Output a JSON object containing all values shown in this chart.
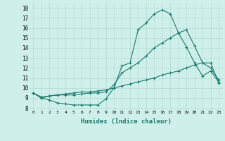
{
  "xlabel": "Humidex (Indice chaleur)",
  "ylabel": "",
  "background_color": "#cff0ea",
  "grid_color": "#b8ddd8",
  "line_color": "#1a7a6e",
  "xlim": [
    -0.5,
    23.5
  ],
  "ylim": [
    7.8,
    18.5
  ],
  "xticks": [
    0,
    1,
    2,
    3,
    4,
    5,
    6,
    7,
    8,
    9,
    10,
    11,
    12,
    13,
    14,
    15,
    16,
    17,
    18,
    19,
    20,
    21,
    22,
    23
  ],
  "yticks": [
    8,
    9,
    10,
    11,
    12,
    13,
    14,
    15,
    16,
    17,
    18
  ],
  "series": [
    [
      9.5,
      9.0,
      8.8,
      8.5,
      8.4,
      8.3,
      8.3,
      8.3,
      8.3,
      8.9,
      10.0,
      12.2,
      12.5,
      15.8,
      16.5,
      17.4,
      17.8,
      17.4,
      15.5,
      14.1,
      12.5,
      11.2,
      11.7,
      10.6
    ],
    [
      9.5,
      9.0,
      9.2,
      9.3,
      9.3,
      9.3,
      9.4,
      9.5,
      9.5,
      9.6,
      10.3,
      11.5,
      12.0,
      12.5,
      13.2,
      14.0,
      14.5,
      15.0,
      15.5,
      15.8,
      14.2,
      12.5,
      12.0,
      10.8
    ],
    [
      9.5,
      9.1,
      9.2,
      9.3,
      9.4,
      9.5,
      9.6,
      9.6,
      9.7,
      9.8,
      10.0,
      10.2,
      10.4,
      10.6,
      10.8,
      11.0,
      11.3,
      11.5,
      11.7,
      12.0,
      12.3,
      12.5,
      12.5,
      10.5
    ]
  ]
}
